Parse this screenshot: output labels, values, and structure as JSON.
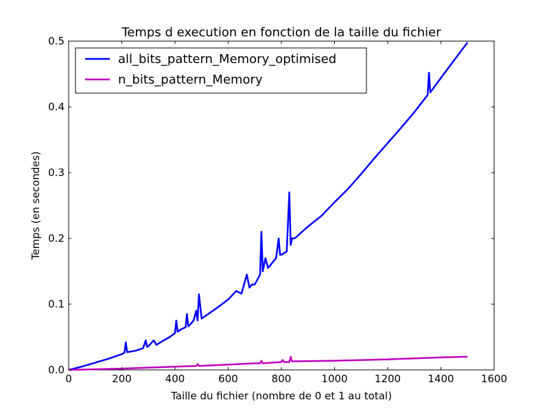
{
  "chart_data": {
    "type": "line",
    "title": "Temps d execution en fonction de la taille du fichier",
    "xlabel": "Taille du fichier (nombre de 0 et 1 au total)",
    "ylabel": "Temps (en secondes)",
    "xlim": [
      0,
      1600
    ],
    "ylim": [
      0.0,
      0.5
    ],
    "xticks": [
      0,
      200,
      400,
      600,
      800,
      1000,
      1200,
      1400,
      1600
    ],
    "yticks": [
      0.0,
      0.1,
      0.2,
      0.3,
      0.4,
      0.5
    ],
    "xtick_labels": [
      "0",
      "200",
      "400",
      "600",
      "800",
      "1000",
      "1200",
      "1400",
      "1600"
    ],
    "ytick_labels": [
      "0.0",
      "0.1",
      "0.2",
      "0.3",
      "0.4",
      "0.5"
    ],
    "grid": false,
    "legend_position": "upper-left",
    "series": [
      {
        "name": "all_bits_pattern_Memory_optimised",
        "color": "#0000ff",
        "x": [
          0,
          50,
          100,
          150,
          200,
          210,
          215,
          220,
          250,
          280,
          290,
          295,
          300,
          320,
          330,
          350,
          380,
          400,
          405,
          410,
          420,
          440,
          445,
          450,
          470,
          480,
          485,
          490,
          500,
          550,
          600,
          630,
          650,
          670,
          680,
          690,
          700,
          720,
          725,
          730,
          740,
          750,
          760,
          780,
          790,
          795,
          800,
          820,
          830,
          835,
          840,
          850,
          900,
          950,
          1000,
          1050,
          1100,
          1150,
          1200,
          1250,
          1300,
          1350,
          1355,
          1360,
          1400,
          1450,
          1500
        ],
        "y": [
          0.0,
          0.005,
          0.011,
          0.017,
          0.024,
          0.026,
          0.042,
          0.027,
          0.029,
          0.033,
          0.045,
          0.035,
          0.036,
          0.045,
          0.038,
          0.043,
          0.05,
          0.056,
          0.075,
          0.058,
          0.061,
          0.065,
          0.085,
          0.066,
          0.075,
          0.09,
          0.075,
          0.115,
          0.078,
          0.092,
          0.107,
          0.12,
          0.116,
          0.145,
          0.125,
          0.13,
          0.13,
          0.145,
          0.21,
          0.15,
          0.17,
          0.155,
          0.16,
          0.17,
          0.2,
          0.175,
          0.175,
          0.18,
          0.27,
          0.19,
          0.2,
          0.2,
          0.218,
          0.234,
          0.255,
          0.275,
          0.298,
          0.322,
          0.345,
          0.368,
          0.392,
          0.418,
          0.452,
          0.422,
          0.444,
          0.471,
          0.498
        ]
      },
      {
        "name": "n_bits_pattern_Memory",
        "color": "#bf00bf",
        "x": [
          0,
          200,
          400,
          480,
          485,
          490,
          600,
          700,
          720,
          725,
          730,
          800,
          805,
          810,
          830,
          835,
          840,
          1000,
          1200,
          1400,
          1500
        ],
        "y": [
          0.0,
          0.002,
          0.005,
          0.006,
          0.009,
          0.006,
          0.008,
          0.01,
          0.01,
          0.014,
          0.01,
          0.012,
          0.015,
          0.012,
          0.012,
          0.02,
          0.013,
          0.014,
          0.016,
          0.019,
          0.02
        ]
      }
    ]
  }
}
